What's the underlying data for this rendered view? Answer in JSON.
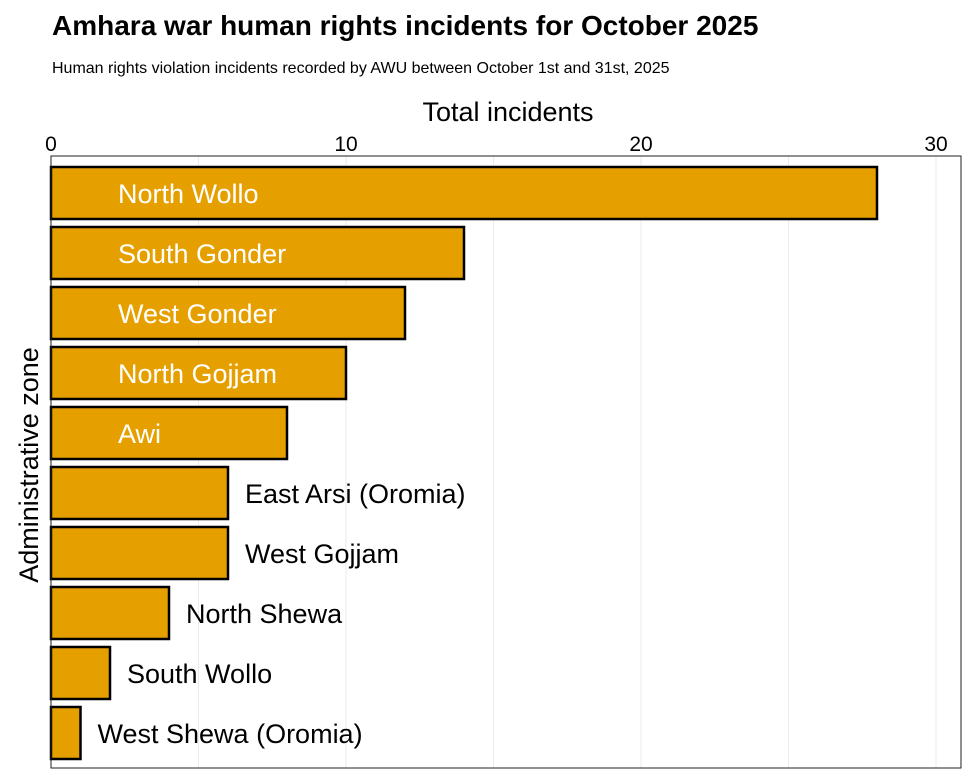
{
  "chart_data": {
    "type": "bar",
    "orientation": "horizontal",
    "title": "Amhara war human rights incidents for October 2025",
    "subtitle": "Human rights violation incidents recorded by AWU between October 1st and 31st, 2025",
    "xlabel": "Total incidents",
    "ylabel": "Administrative zone",
    "xlim": [
      0,
      30
    ],
    "x_ticks": [
      0,
      10,
      20,
      30
    ],
    "categories": [
      "North Wollo",
      "South Gonder",
      "West Gonder",
      "North Gojjam",
      "Awi",
      "East Arsi (Oromia)",
      "West Gojjam",
      "North Shewa",
      "South Wollo",
      "West Shewa (Oromia)"
    ],
    "values": [
      28,
      14,
      12,
      10,
      8,
      6,
      6,
      4,
      2,
      1
    ],
    "bar_color": "#E5A000",
    "bar_outline_color": "#000000",
    "grid": "vertical",
    "x_axis_position": "top",
    "labels_inside_bar_color": "#ffffff",
    "labels_outside_bar_color": "#000000"
  }
}
